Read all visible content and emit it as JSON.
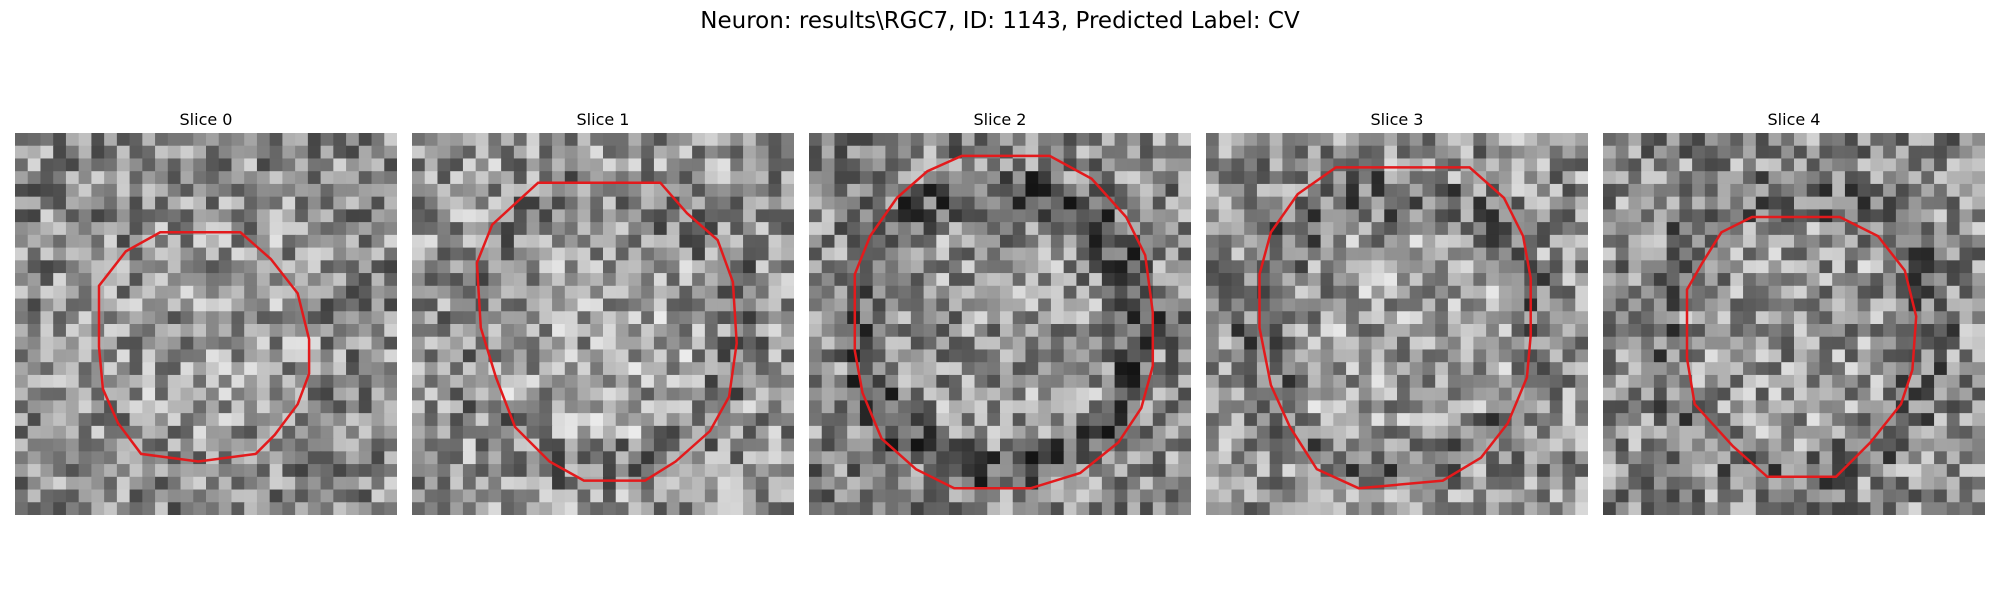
{
  "figure": {
    "title": "Neuron: results\\RGC7, ID: 1143, Predicted Label: CV"
  },
  "outline_color": "#e31a1c",
  "panels": [
    {
      "title": "Slice 0",
      "seed": 11,
      "base": 140,
      "ring": 0.0,
      "contour": [
        [
          0.38,
          0.26
        ],
        [
          0.59,
          0.26
        ],
        [
          0.67,
          0.33
        ],
        [
          0.74,
          0.42
        ],
        [
          0.77,
          0.54
        ],
        [
          0.77,
          0.63
        ],
        [
          0.74,
          0.71
        ],
        [
          0.68,
          0.79
        ],
        [
          0.63,
          0.84
        ],
        [
          0.48,
          0.86
        ],
        [
          0.33,
          0.84
        ],
        [
          0.27,
          0.76
        ],
        [
          0.23,
          0.67
        ],
        [
          0.22,
          0.56
        ],
        [
          0.22,
          0.4
        ],
        [
          0.29,
          0.31
        ]
      ]
    },
    {
      "title": "Slice 1",
      "seed": 23,
      "base": 150,
      "ring": 0.35,
      "contour": [
        [
          0.33,
          0.13
        ],
        [
          0.65,
          0.13
        ],
        [
          0.72,
          0.21
        ],
        [
          0.8,
          0.28
        ],
        [
          0.84,
          0.39
        ],
        [
          0.85,
          0.55
        ],
        [
          0.83,
          0.69
        ],
        [
          0.78,
          0.78
        ],
        [
          0.69,
          0.86
        ],
        [
          0.61,
          0.91
        ],
        [
          0.45,
          0.91
        ],
        [
          0.36,
          0.86
        ],
        [
          0.27,
          0.77
        ],
        [
          0.22,
          0.64
        ],
        [
          0.18,
          0.51
        ],
        [
          0.17,
          0.34
        ],
        [
          0.21,
          0.24
        ]
      ]
    },
    {
      "title": "Slice 2",
      "seed": 37,
      "base": 135,
      "ring": 0.8,
      "contour": [
        [
          0.4,
          0.06
        ],
        [
          0.63,
          0.06
        ],
        [
          0.74,
          0.12
        ],
        [
          0.83,
          0.22
        ],
        [
          0.88,
          0.32
        ],
        [
          0.9,
          0.47
        ],
        [
          0.9,
          0.61
        ],
        [
          0.87,
          0.72
        ],
        [
          0.81,
          0.81
        ],
        [
          0.71,
          0.89
        ],
        [
          0.58,
          0.93
        ],
        [
          0.38,
          0.93
        ],
        [
          0.28,
          0.88
        ],
        [
          0.19,
          0.8
        ],
        [
          0.14,
          0.68
        ],
        [
          0.12,
          0.57
        ],
        [
          0.12,
          0.37
        ],
        [
          0.16,
          0.27
        ],
        [
          0.23,
          0.17
        ],
        [
          0.31,
          0.1
        ]
      ]
    },
    {
      "title": "Slice 3",
      "seed": 51,
      "base": 145,
      "ring": 0.55,
      "contour": [
        [
          0.34,
          0.09
        ],
        [
          0.69,
          0.09
        ],
        [
          0.78,
          0.17
        ],
        [
          0.83,
          0.27
        ],
        [
          0.85,
          0.38
        ],
        [
          0.85,
          0.53
        ],
        [
          0.84,
          0.64
        ],
        [
          0.79,
          0.76
        ],
        [
          0.72,
          0.85
        ],
        [
          0.62,
          0.91
        ],
        [
          0.4,
          0.93
        ],
        [
          0.29,
          0.88
        ],
        [
          0.22,
          0.77
        ],
        [
          0.17,
          0.66
        ],
        [
          0.14,
          0.51
        ],
        [
          0.14,
          0.37
        ],
        [
          0.17,
          0.26
        ],
        [
          0.24,
          0.16
        ]
      ]
    },
    {
      "title": "Slice 4",
      "seed": 67,
      "base": 140,
      "ring": 0.5,
      "contour": [
        [
          0.39,
          0.22
        ],
        [
          0.62,
          0.22
        ],
        [
          0.72,
          0.27
        ],
        [
          0.79,
          0.36
        ],
        [
          0.82,
          0.48
        ],
        [
          0.81,
          0.62
        ],
        [
          0.78,
          0.71
        ],
        [
          0.7,
          0.81
        ],
        [
          0.61,
          0.9
        ],
        [
          0.43,
          0.9
        ],
        [
          0.34,
          0.82
        ],
        [
          0.24,
          0.71
        ],
        [
          0.22,
          0.59
        ],
        [
          0.22,
          0.41
        ],
        [
          0.26,
          0.34
        ],
        [
          0.31,
          0.26
        ]
      ]
    }
  ]
}
